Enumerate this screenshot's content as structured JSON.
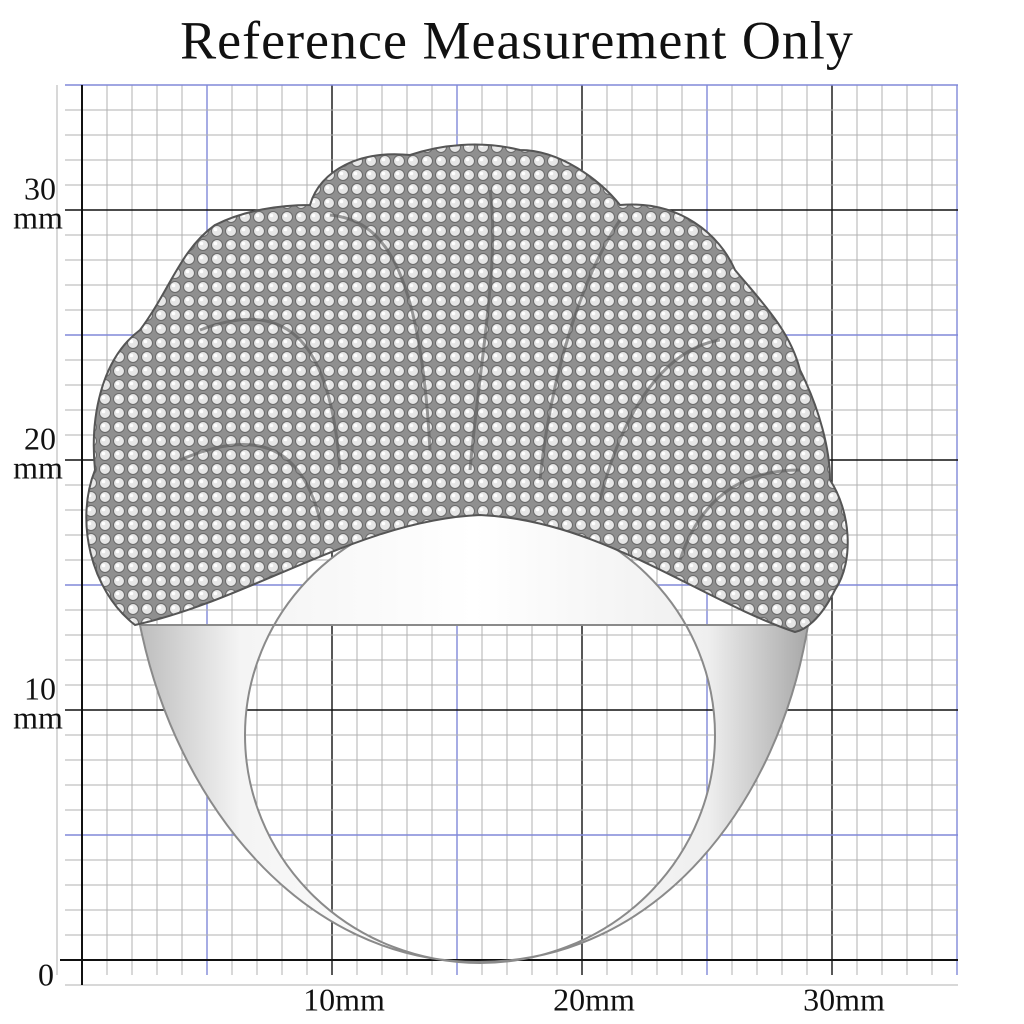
{
  "title": "Reference Measurement Only",
  "y_labels": [
    {
      "number": "30",
      "unit": "mm"
    },
    {
      "number": "20",
      "unit": "mm"
    },
    {
      "number": "10",
      "unit": "mm"
    }
  ],
  "origin_label": "0",
  "x_labels": [
    "10mm",
    "20mm",
    "30mm"
  ]
}
